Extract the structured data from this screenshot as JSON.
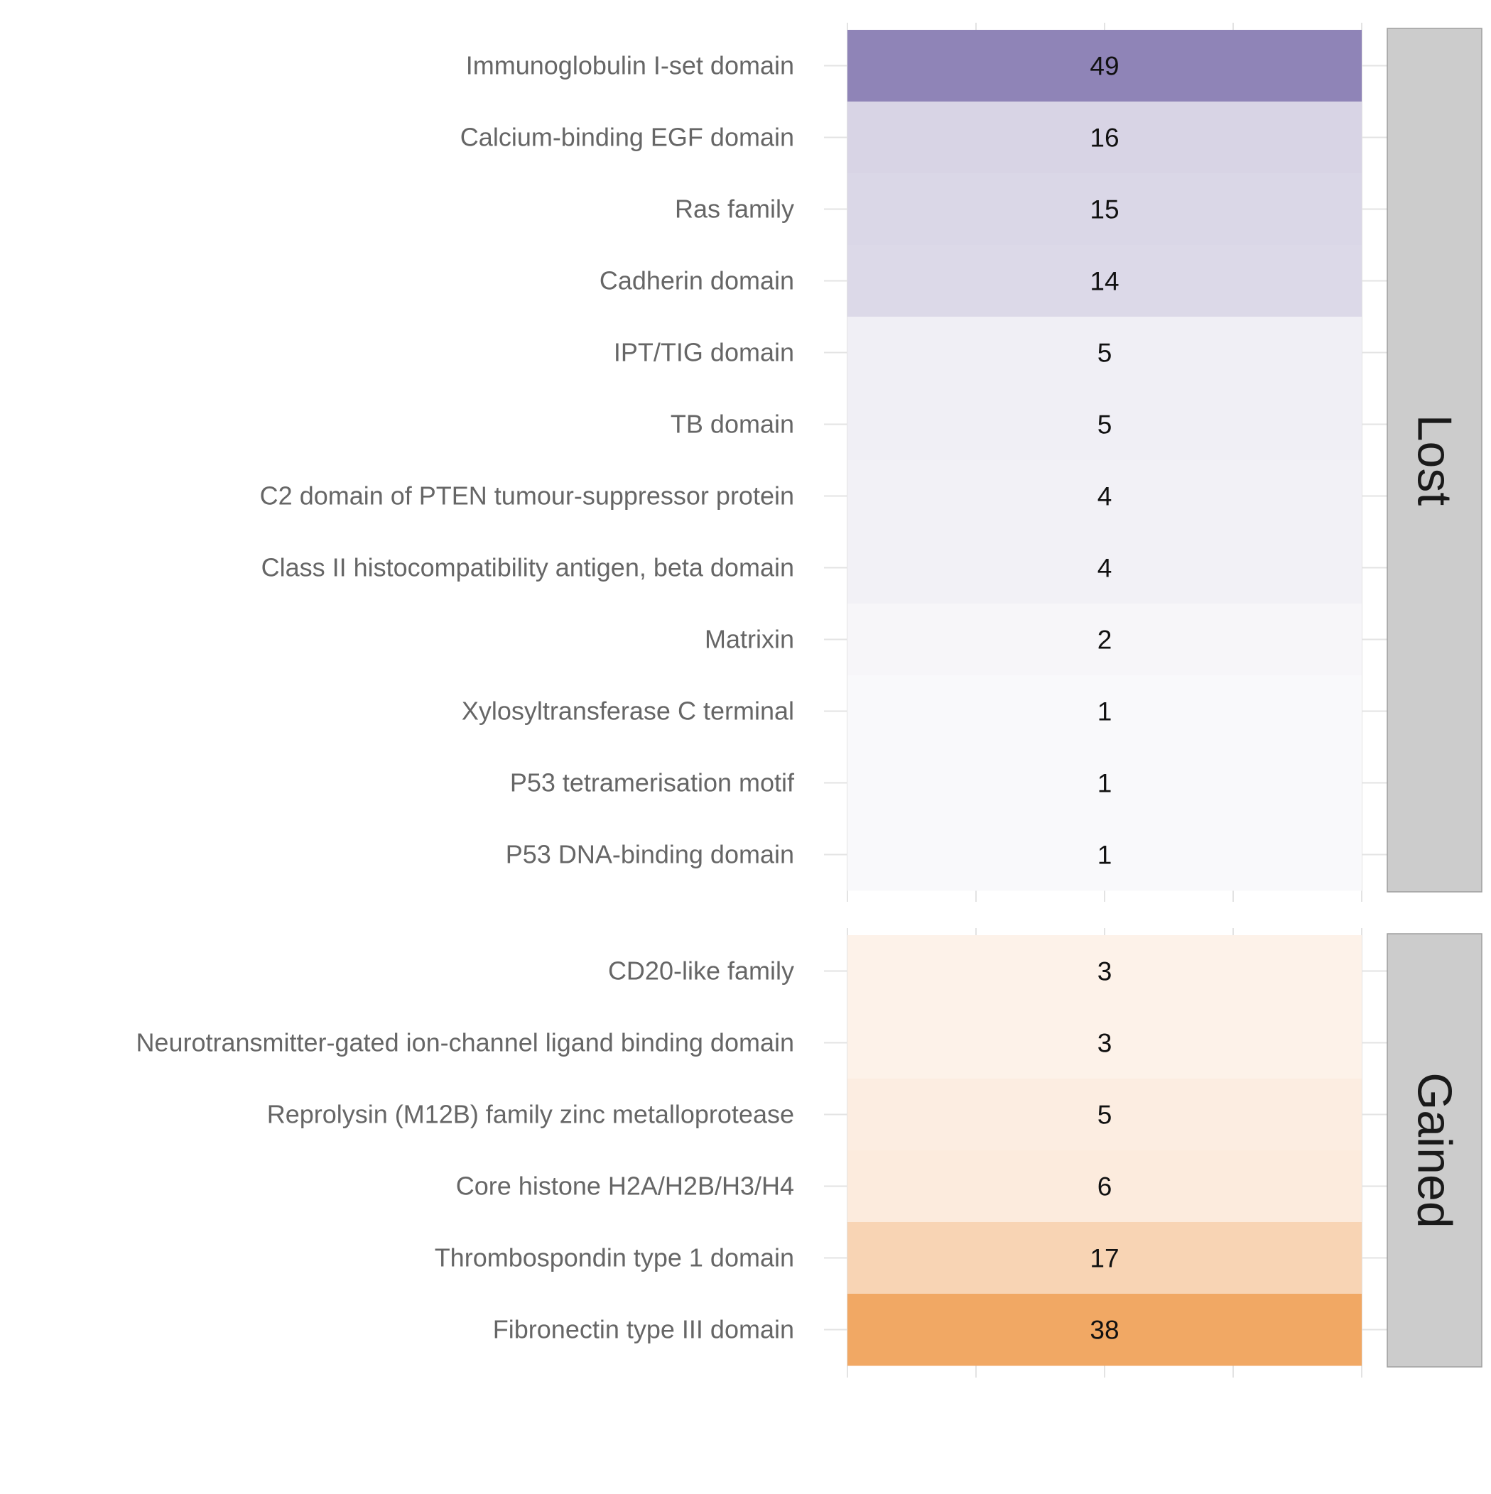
{
  "chart_data": {
    "type": "heatmap",
    "facets": [
      {
        "name": "Lost",
        "color_high": "#8f84b7",
        "color_low": "#fbfbfc",
        "max_value": 49,
        "rows": [
          {
            "label": "Immunoglobulin I-set domain",
            "value": 49
          },
          {
            "label": "Calcium-binding EGF domain",
            "value": 16
          },
          {
            "label": "Ras family",
            "value": 15
          },
          {
            "label": "Cadherin domain",
            "value": 14
          },
          {
            "label": "IPT/TIG domain",
            "value": 5
          },
          {
            "label": "TB domain",
            "value": 5
          },
          {
            "label": "C2 domain of PTEN tumour-suppressor protein",
            "value": 4
          },
          {
            "label": "Class II histocompatibility antigen, beta domain",
            "value": 4
          },
          {
            "label": "Matrixin",
            "value": 2
          },
          {
            "label": "Xylosyltransferase C terminal",
            "value": 1
          },
          {
            "label": "P53 tetramerisation motif",
            "value": 1
          },
          {
            "label": "P53 DNA-binding domain",
            "value": 1
          }
        ]
      },
      {
        "name": "Gained",
        "color_high": "#f1a864",
        "color_low": "#fef8f4",
        "max_value": 38,
        "rows": [
          {
            "label": "CD20-like family",
            "value": 3
          },
          {
            "label": "Neurotransmitter-gated ion-channel ligand binding domain",
            "value": 3
          },
          {
            "label": "Reprolysin (M12B) family zinc metalloprotease",
            "value": 5
          },
          {
            "label": "Core histone H2A/H2B/H3/H4",
            "value": 6
          },
          {
            "label": "Thrombospondin type 1 domain",
            "value": 17
          },
          {
            "label": "Fibronectin type III domain",
            "value": 38
          }
        ]
      }
    ],
    "xlabel": "",
    "ylabel": "",
    "grid": true,
    "strip_fill": "#cccccc"
  }
}
